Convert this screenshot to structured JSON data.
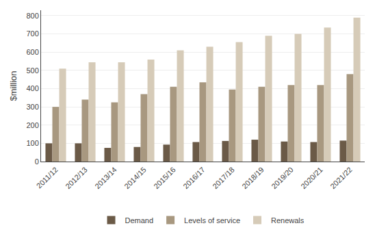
{
  "chart_data": {
    "type": "bar",
    "ylabel": "$million",
    "categories": [
      "2011/12",
      "2012/13",
      "2013/14",
      "2014/15",
      "2015/16",
      "2016/17",
      "2017/18",
      "2018/19",
      "2019/20",
      "2020/21",
      "2021/22"
    ],
    "series": [
      {
        "name": "Demand",
        "color": "#6b5a47",
        "values": [
          100,
          100,
          75,
          80,
          93,
          107,
          113,
          120,
          110,
          107,
          115
        ]
      },
      {
        "name": "Levels of service",
        "color": "#a89880",
        "values": [
          300,
          340,
          325,
          370,
          410,
          435,
          395,
          410,
          420,
          420,
          480
        ]
      },
      {
        "name": "Renewals",
        "color": "#d6cbb8",
        "values": [
          510,
          545,
          545,
          560,
          610,
          630,
          655,
          690,
          700,
          735,
          790
        ]
      }
    ],
    "ylim": [
      0,
      830
    ],
    "yticks": [
      0,
      100,
      200,
      300,
      400,
      500,
      600,
      700,
      800
    ],
    "grid": true,
    "legend": "bottom"
  }
}
